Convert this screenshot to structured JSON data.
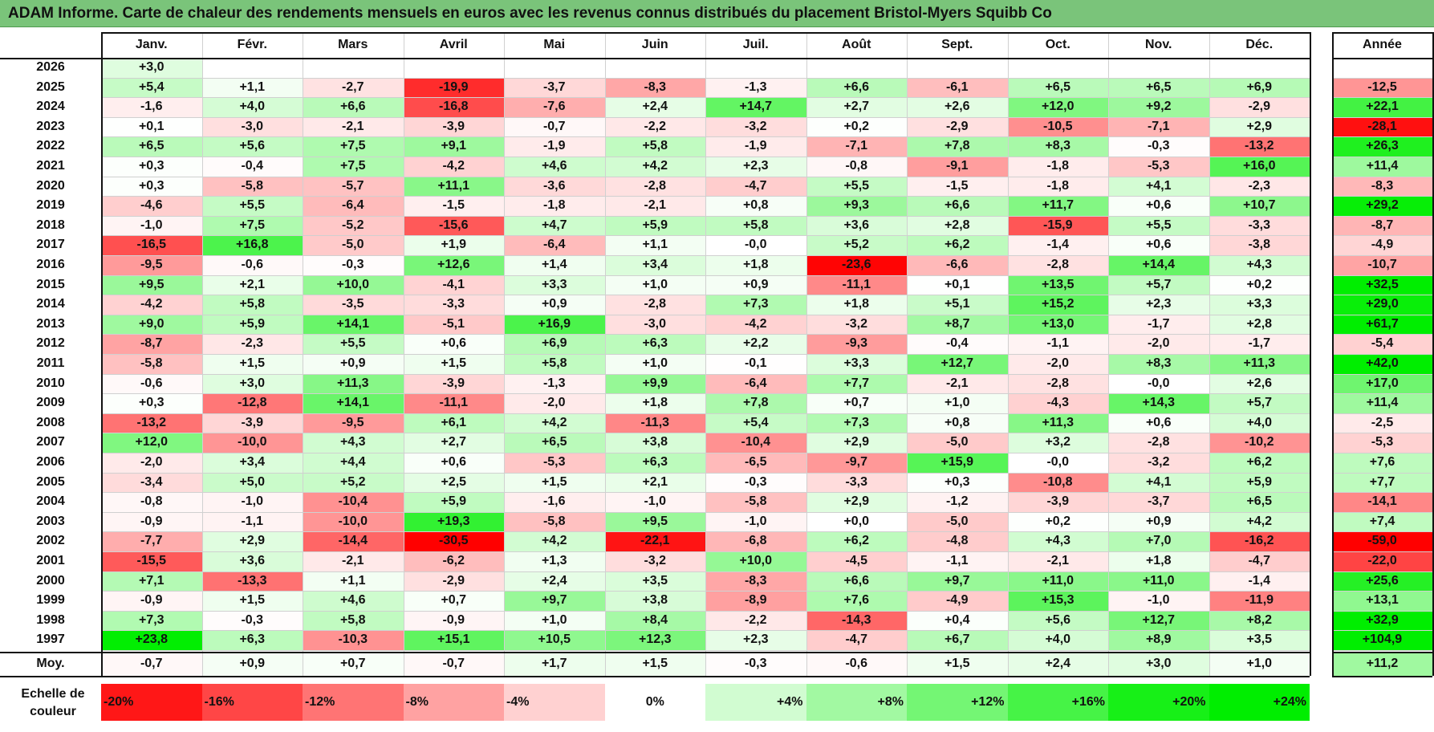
{
  "title": "ADAM Informe. Carte de chaleur des rendements mensuels en euros avec les revenus connus distribués du placement Bristol-Myers Squibb Co",
  "chart_data": {
    "type": "heatmap",
    "title": "ADAM Informe. Carte de chaleur des rendements mensuels en euros avec les revenus connus distribués du placement Bristol-Myers Squibb Co",
    "months": [
      "Janv.",
      "Févr.",
      "Mars",
      "Avril",
      "Mai",
      "Juin",
      "Juil.",
      "Août",
      "Sept.",
      "Oct.",
      "Nov.",
      "Déc."
    ],
    "year_header": "Année",
    "rows": [
      {
        "year": "2026",
        "values": [
          "+3,0",
          "",
          "",
          "",
          "",
          "",
          "",
          "",
          "",
          "",
          "",
          ""
        ],
        "annual": ""
      },
      {
        "year": "2025",
        "values": [
          "+5,4",
          "+1,1",
          "-2,7",
          "-19,9",
          "-3,7",
          "-8,3",
          "-1,3",
          "+6,6",
          "-6,1",
          "+6,5",
          "+6,5",
          "+6,9"
        ],
        "annual": "-12,5"
      },
      {
        "year": "2024",
        "values": [
          "-1,6",
          "+4,0",
          "+6,6",
          "-16,8",
          "-7,6",
          "+2,4",
          "+14,7",
          "+2,7",
          "+2,6",
          "+12,0",
          "+9,2",
          "-2,9"
        ],
        "annual": "+22,1"
      },
      {
        "year": "2023",
        "values": [
          "+0,1",
          "-3,0",
          "-2,1",
          "-3,9",
          "-0,7",
          "-2,2",
          "-3,2",
          "+0,2",
          "-2,9",
          "-10,5",
          "-7,1",
          "+2,9"
        ],
        "annual": "-28,1"
      },
      {
        "year": "2022",
        "values": [
          "+6,5",
          "+5,6",
          "+7,5",
          "+9,1",
          "-1,9",
          "+5,8",
          "-1,9",
          "-7,1",
          "+7,8",
          "+8,3",
          "-0,3",
          "-13,2"
        ],
        "annual": "+26,3"
      },
      {
        "year": "2021",
        "values": [
          "+0,3",
          "-0,4",
          "+7,5",
          "-4,2",
          "+4,6",
          "+4,2",
          "+2,3",
          "-0,8",
          "-9,1",
          "-1,8",
          "-5,3",
          "+16,0"
        ],
        "annual": "+11,4"
      },
      {
        "year": "2020",
        "values": [
          "+0,3",
          "-5,8",
          "-5,7",
          "+11,1",
          "-3,6",
          "-2,8",
          "-4,7",
          "+5,5",
          "-1,5",
          "-1,8",
          "+4,1",
          "-2,3"
        ],
        "annual": "-8,3"
      },
      {
        "year": "2019",
        "values": [
          "-4,6",
          "+5,5",
          "-6,4",
          "-1,5",
          "-1,8",
          "-2,1",
          "+0,8",
          "+9,3",
          "+6,6",
          "+11,7",
          "+0,6",
          "+10,7"
        ],
        "annual": "+29,2"
      },
      {
        "year": "2018",
        "values": [
          "-1,0",
          "+7,5",
          "-5,2",
          "-15,6",
          "+4,7",
          "+5,9",
          "+5,8",
          "+3,6",
          "+2,8",
          "-15,9",
          "+5,5",
          "-3,3"
        ],
        "annual": "-8,7"
      },
      {
        "year": "2017",
        "values": [
          "-16,5",
          "+16,8",
          "-5,0",
          "+1,9",
          "-6,4",
          "+1,1",
          "-0,0",
          "+5,2",
          "+6,2",
          "-1,4",
          "+0,6",
          "-3,8"
        ],
        "annual": "-4,9"
      },
      {
        "year": "2016",
        "values": [
          "-9,5",
          "-0,6",
          "-0,3",
          "+12,6",
          "+1,4",
          "+3,4",
          "+1,8",
          "-23,6",
          "-6,6",
          "-2,8",
          "+14,4",
          "+4,3"
        ],
        "annual": "-10,7"
      },
      {
        "year": "2015",
        "values": [
          "+9,5",
          "+2,1",
          "+10,0",
          "-4,1",
          "+3,3",
          "+1,0",
          "+0,9",
          "-11,1",
          "+0,1",
          "+13,5",
          "+5,7",
          "+0,2"
        ],
        "annual": "+32,5"
      },
      {
        "year": "2014",
        "values": [
          "-4,2",
          "+5,8",
          "-3,5",
          "-3,3",
          "+0,9",
          "-2,8",
          "+7,3",
          "+1,8",
          "+5,1",
          "+15,2",
          "+2,3",
          "+3,3"
        ],
        "annual": "+29,0"
      },
      {
        "year": "2013",
        "values": [
          "+9,0",
          "+5,9",
          "+14,1",
          "-5,1",
          "+16,9",
          "-3,0",
          "-4,2",
          "-3,2",
          "+8,7",
          "+13,0",
          "-1,7",
          "+2,8"
        ],
        "annual": "+61,7"
      },
      {
        "year": "2012",
        "values": [
          "-8,7",
          "-2,3",
          "+5,5",
          "+0,6",
          "+6,9",
          "+6,3",
          "+2,2",
          "-9,3",
          "-0,4",
          "-1,1",
          "-2,0",
          "-1,7"
        ],
        "annual": "-5,4"
      },
      {
        "year": "2011",
        "values": [
          "-5,8",
          "+1,5",
          "+0,9",
          "+1,5",
          "+5,8",
          "+1,0",
          "-0,1",
          "+3,3",
          "+12,7",
          "-2,0",
          "+8,3",
          "+11,3"
        ],
        "annual": "+42,0"
      },
      {
        "year": "2010",
        "values": [
          "-0,6",
          "+3,0",
          "+11,3",
          "-3,9",
          "-1,3",
          "+9,9",
          "-6,4",
          "+7,7",
          "-2,1",
          "-2,8",
          "-0,0",
          "+2,6"
        ],
        "annual": "+17,0"
      },
      {
        "year": "2009",
        "values": [
          "+0,3",
          "-12,8",
          "+14,1",
          "-11,1",
          "-2,0",
          "+1,8",
          "+7,8",
          "+0,7",
          "+1,0",
          "-4,3",
          "+14,3",
          "+5,7"
        ],
        "annual": "+11,4"
      },
      {
        "year": "2008",
        "values": [
          "-13,2",
          "-3,9",
          "-9,5",
          "+6,1",
          "+4,2",
          "-11,3",
          "+5,4",
          "+7,3",
          "+0,8",
          "+11,3",
          "+0,6",
          "+4,0"
        ],
        "annual": "-2,5"
      },
      {
        "year": "2007",
        "values": [
          "+12,0",
          "-10,0",
          "+4,3",
          "+2,7",
          "+6,5",
          "+3,8",
          "-10,4",
          "+2,9",
          "-5,0",
          "+3,2",
          "-2,8",
          "-10,2"
        ],
        "annual": "-5,3"
      },
      {
        "year": "2006",
        "values": [
          "-2,0",
          "+3,4",
          "+4,4",
          "+0,6",
          "-5,3",
          "+6,3",
          "-6,5",
          "-9,7",
          "+15,9",
          "-0,0",
          "-3,2",
          "+6,2"
        ],
        "annual": "+7,6"
      },
      {
        "year": "2005",
        "values": [
          "-3,4",
          "+5,0",
          "+5,2",
          "+2,5",
          "+1,5",
          "+2,1",
          "-0,3",
          "-3,3",
          "+0,3",
          "-10,8",
          "+4,1",
          "+5,9"
        ],
        "annual": "+7,7"
      },
      {
        "year": "2004",
        "values": [
          "-0,8",
          "-1,0",
          "-10,4",
          "+5,9",
          "-1,6",
          "-1,0",
          "-5,8",
          "+2,9",
          "-1,2",
          "-3,9",
          "-3,7",
          "+6,5"
        ],
        "annual": "-14,1"
      },
      {
        "year": "2003",
        "values": [
          "-0,9",
          "-1,1",
          "-10,0",
          "+19,3",
          "-5,8",
          "+9,5",
          "-1,0",
          "+0,0",
          "-5,0",
          "+0,2",
          "+0,9",
          "+4,2"
        ],
        "annual": "+7,4"
      },
      {
        "year": "2002",
        "values": [
          "-7,7",
          "+2,9",
          "-14,4",
          "-30,5",
          "+4,2",
          "-22,1",
          "-6,8",
          "+6,2",
          "-4,8",
          "+4,3",
          "+7,0",
          "-16,2"
        ],
        "annual": "-59,0"
      },
      {
        "year": "2001",
        "values": [
          "-15,5",
          "+3,6",
          "-2,1",
          "-6,2",
          "+1,3",
          "-3,2",
          "+10,0",
          "-4,5",
          "-1,1",
          "-2,1",
          "+1,8",
          "-4,7"
        ],
        "annual": "-22,0"
      },
      {
        "year": "2000",
        "values": [
          "+7,1",
          "-13,3",
          "+1,1",
          "-2,9",
          "+2,4",
          "+3,5",
          "-8,3",
          "+6,6",
          "+9,7",
          "+11,0",
          "+11,0",
          "-1,4"
        ],
        "annual": "+25,6"
      },
      {
        "year": "1999",
        "values": [
          "-0,9",
          "+1,5",
          "+4,6",
          "+0,7",
          "+9,7",
          "+3,8",
          "-8,9",
          "+7,6",
          "-4,9",
          "+15,3",
          "-1,0",
          "-11,9"
        ],
        "annual": "+13,1"
      },
      {
        "year": "1998",
        "values": [
          "+7,3",
          "-0,3",
          "+5,8",
          "-0,9",
          "+1,0",
          "+8,4",
          "-2,2",
          "-14,3",
          "+0,4",
          "+5,6",
          "+12,7",
          "+8,2"
        ],
        "annual": "+32,9"
      },
      {
        "year": "1997",
        "values": [
          "+23,8",
          "+6,3",
          "-10,3",
          "+15,1",
          "+10,5",
          "+12,3",
          "+2,3",
          "-4,7",
          "+6,7",
          "+4,0",
          "+8,9",
          "+3,5"
        ],
        "annual": "+104,9"
      }
    ],
    "average": {
      "label": "Moy.",
      "values": [
        "-0,7",
        "+0,9",
        "+0,7",
        "-0,7",
        "+1,7",
        "+1,5",
        "-0,3",
        "-0,6",
        "+1,5",
        "+2,4",
        "+3,0",
        "+1,0"
      ],
      "annual": "+11,2"
    },
    "color_scale": {
      "label": "Echelle de couleur",
      "stops": [
        "-20%",
        "-16%",
        "-12%",
        "-8%",
        "-4%",
        "0%",
        "+4%",
        "+8%",
        "+12%",
        "+16%",
        "+20%",
        "+24%"
      ]
    },
    "colors": {
      "neg_max": "#ff0000",
      "neutral": "#ffffff",
      "pos_max": "#00ee00",
      "title_bg": "#7ac47a"
    }
  }
}
